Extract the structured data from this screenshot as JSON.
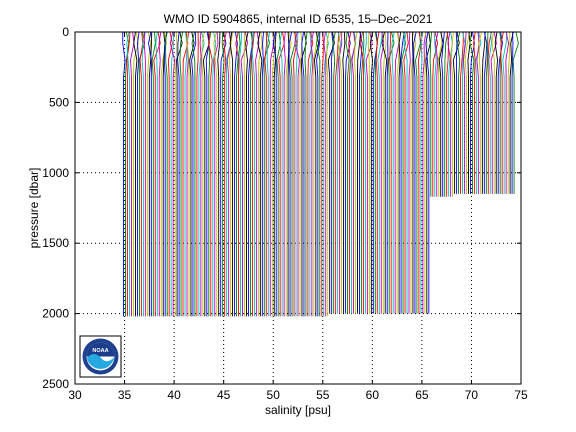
{
  "chart_data": {
    "type": "line",
    "title": "WMO ID 5904865, internal ID 6535, 15–Dec–2021",
    "xlabel": "salinity [psu]",
    "ylabel": "pressure [dbar]",
    "xlim": [
      30,
      75
    ],
    "ylim": [
      0,
      2500
    ],
    "y_reversed": true,
    "grid": true,
    "grid_style": "dotted",
    "xticks": [
      "30",
      "35",
      "40",
      "45",
      "50",
      "55",
      "60",
      "65",
      "70",
      "75"
    ],
    "yticks": [
      "0",
      "500",
      "1000",
      "1500",
      "2000",
      "2500"
    ],
    "profile_offset_psu": 0.2,
    "profile_colors": [
      "#0000ff",
      "#008000",
      "#ff0000",
      "#00bfbf",
      "#bf00bf",
      "#bfbf00",
      "#000000"
    ],
    "profile_groups": [
      {
        "first_salinity": 34.9,
        "last_salinity": 55.5,
        "max_pressure": 2020
      },
      {
        "first_salinity": 55.7,
        "last_salinity": 65.7,
        "max_pressure": 2000
      },
      {
        "first_salinity": 65.9,
        "last_salinity": 68.1,
        "max_pressure": 1170
      },
      {
        "first_salinity": 68.3,
        "last_salinity": 74.3,
        "max_pressure": 1150
      }
    ],
    "profile_shape": {
      "surface_offset_psu": 0.4,
      "mixed_layer_pressure": 80,
      "halocline_pressure": 320
    }
  },
  "logo": {
    "name": "NOAA",
    "text": "NOAA",
    "colors": {
      "outer": "#1f3f8f",
      "inner": "#ffffff",
      "sky": "#1c3d8c",
      "wave": "#26a9e0"
    }
  }
}
